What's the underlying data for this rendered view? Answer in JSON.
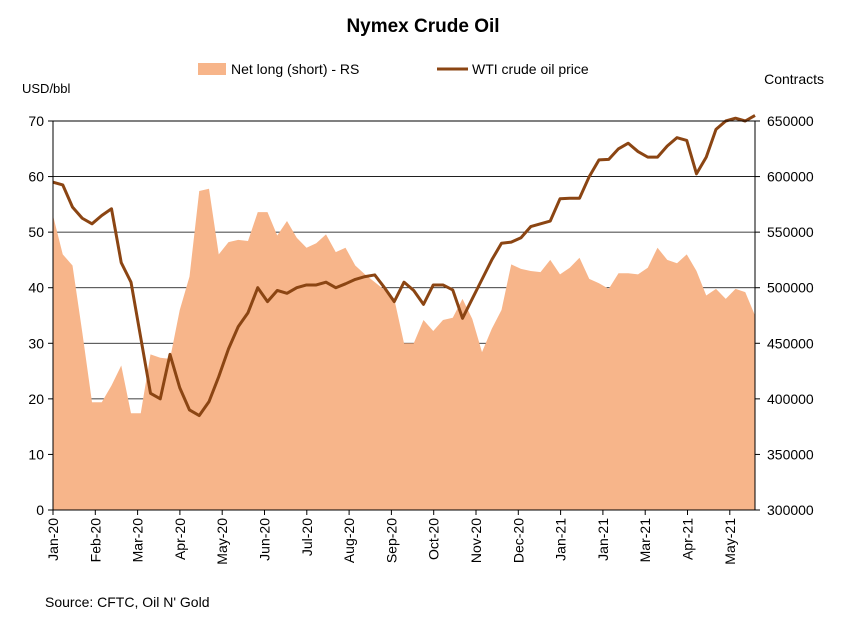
{
  "chart_data": {
    "type": "area",
    "title": "Nymex Crude Oil",
    "source": "Source: CFTC, Oil N' Gold",
    "left_axis": {
      "label": "USD/bbl",
      "ylim": [
        0,
        70
      ],
      "ticks": [
        0,
        10,
        20,
        30,
        40,
        50,
        60,
        70
      ]
    },
    "right_axis": {
      "label": "Contracts",
      "ylim": [
        300000,
        650000
      ],
      "ticks": [
        300000,
        350000,
        400000,
        450000,
        500000,
        550000,
        600000,
        650000
      ]
    },
    "x_tick_labels": [
      "Jan-20",
      "Feb-20",
      "Mar-20",
      "Apr-20",
      "May-20",
      "Jun-20",
      "Jul-20",
      "Aug-20",
      "Sep-20",
      "Oct-20",
      "Nov-20",
      "Dec-20",
      "Jan-21",
      "Jan-21",
      "Mar-21",
      "Apr-21",
      "May-21"
    ],
    "grid": "horizontal",
    "legend_position": "top",
    "series": [
      {
        "name": "Net long (short) - RS",
        "type": "area",
        "axis": "right",
        "color": "#F7B58A",
        "values": [
          565000,
          530000,
          520000,
          460000,
          397000,
          397000,
          412000,
          430000,
          387000,
          387000,
          440000,
          437000,
          436000,
          480000,
          510000,
          587000,
          589000,
          530000,
          541000,
          543000,
          542000,
          568000,
          568000,
          547000,
          560000,
          545000,
          536000,
          540000,
          548000,
          532000,
          536000,
          520000,
          512000,
          505000,
          498000,
          490000,
          450000,
          450000,
          471000,
          461000,
          471000,
          473000,
          490000,
          472000,
          442000,
          463000,
          480000,
          521000,
          517000,
          515000,
          514000,
          525000,
          512000,
          518000,
          527000,
          508000,
          504000,
          499000,
          513000,
          513000,
          512000,
          518000,
          536000,
          525000,
          522000,
          530000,
          515000,
          493000,
          499000,
          490000,
          499000,
          496000,
          475000
        ]
      },
      {
        "name": "WTI crude oil price",
        "type": "line",
        "axis": "left",
        "color": "#8B4513",
        "values": [
          59.0,
          58.5,
          54.5,
          52.5,
          51.5,
          53.0,
          54.2,
          44.5,
          41.0,
          31.0,
          21.0,
          20.0,
          28.0,
          22.0,
          18.0,
          17.0,
          19.5,
          24.0,
          29.0,
          33.0,
          35.5,
          40.0,
          37.5,
          39.5,
          39.0,
          40.0,
          40.5,
          40.5,
          41.0,
          40.0,
          40.7,
          41.5,
          42.0,
          42.3,
          40.0,
          37.5,
          41.0,
          39.5,
          37.0,
          40.5,
          40.5,
          39.6,
          34.5,
          38.0,
          41.5,
          45.0,
          48.0,
          48.2,
          49.0,
          51.0,
          51.5,
          52.0,
          56.0,
          56.1,
          56.1,
          60.0,
          63.0,
          63.1,
          65.0,
          66.0,
          64.5,
          63.5,
          63.5,
          65.5,
          67.0,
          66.5,
          60.5,
          63.5,
          68.5,
          70.0,
          70.5,
          70.0,
          71.0
        ]
      }
    ]
  }
}
